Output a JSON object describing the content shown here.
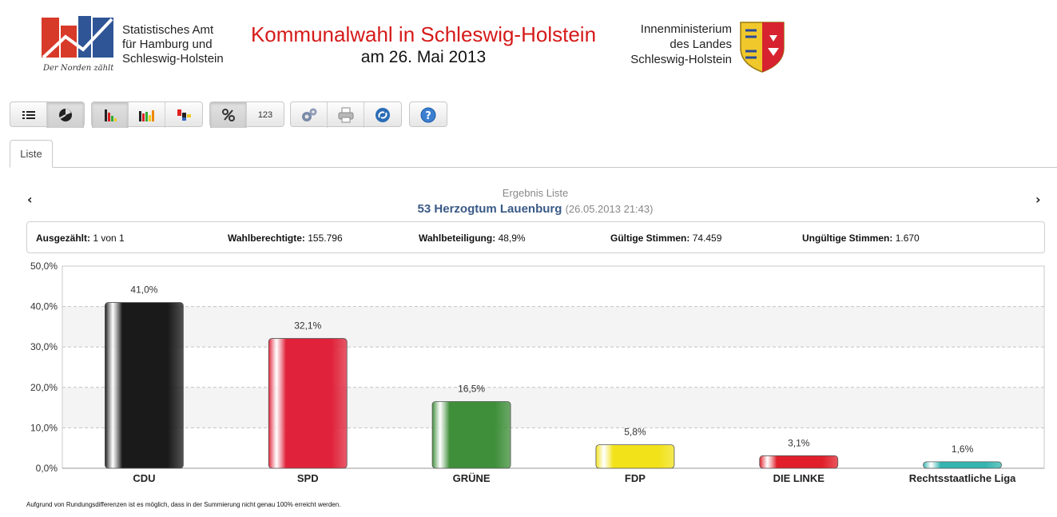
{
  "header": {
    "org_left_lines": [
      "Statistisches Amt",
      "für Hamburg und",
      "Schleswig-Holstein"
    ],
    "logo_tagline": "Der Norden zählt",
    "title": "Kommunalwahl in Schleswig-Holstein",
    "date_line": "am 26. Mai 2013",
    "org_right_lines": [
      "Innenministerium",
      "des Landes",
      "Schleswig-Holstein"
    ]
  },
  "toolbar": {
    "buttons": [
      {
        "name": "list-view-button",
        "icon": "list-icon"
      },
      {
        "name": "map-view-button",
        "icon": "map-icon",
        "active": true
      },
      {
        "name": "bar-chart-button",
        "icon": "bar-chart-icon",
        "active": true
      },
      {
        "name": "multi-bar-chart-button",
        "icon": "multi-bar-chart-icon"
      },
      {
        "name": "diff-chart-button",
        "icon": "diff-chart-icon"
      },
      {
        "name": "percent-button",
        "icon": "percent-icon",
        "active": true
      },
      {
        "name": "absolute-button",
        "label": "123"
      },
      {
        "name": "settings-button",
        "icon": "gears-icon"
      },
      {
        "name": "print-button",
        "icon": "printer-icon"
      },
      {
        "name": "link-button",
        "icon": "link-icon"
      },
      {
        "name": "help-button",
        "icon": "help-icon"
      }
    ],
    "absolute_label": "123"
  },
  "tabs": [
    {
      "label": "Liste"
    }
  ],
  "result": {
    "subtitle": "Ergebnis Liste",
    "region": "53 Herzogtum Lauenburg",
    "timestamp": "(26.05.2013 21:43)"
  },
  "stats": {
    "counted_label": "Ausgezählt:",
    "counted_value": "1 von 1",
    "eligible_label": "Wahlberechtigte:",
    "eligible_value": "155.796",
    "turnout_label": "Wahlbeteiligung:",
    "turnout_value": "48,9%",
    "valid_label": "Gültige Stimmen:",
    "valid_value": "74.459",
    "invalid_label": "Ungültige Stimmen:",
    "invalid_value": "1.670"
  },
  "colors": {
    "CDU": "#1a1a1a",
    "SPD": "#e0233a",
    "GRÜNE": "#3f8f3a",
    "FDP": "#f2e21a",
    "DIE LINKE": "#e01f2a",
    "Rechtsstaatliche Liga": "#36b5b0",
    "title_red": "#d61a1a",
    "region_blue": "#3a5a86"
  },
  "chart_data": {
    "type": "bar",
    "categories": [
      "CDU",
      "SPD",
      "GRÜNE",
      "FDP",
      "DIE LINKE",
      "Rechtsstaatliche Liga"
    ],
    "values": [
      41.0,
      32.1,
      16.5,
      5.8,
      3.1,
      1.6
    ],
    "value_labels": [
      "41,0%",
      "32,1%",
      "16,5%",
      "5,8%",
      "3,1%",
      "1,6%"
    ],
    "ylim": [
      0,
      50
    ],
    "yticks": [
      "0,0%",
      "10,0%",
      "20,0%",
      "30,0%",
      "40,0%",
      "50,0%"
    ],
    "grid": true
  },
  "footnote": "Aufgrund von Rundungsdifferenzen ist es möglich, dass in der Summierung nicht genau 100% erreicht werden."
}
